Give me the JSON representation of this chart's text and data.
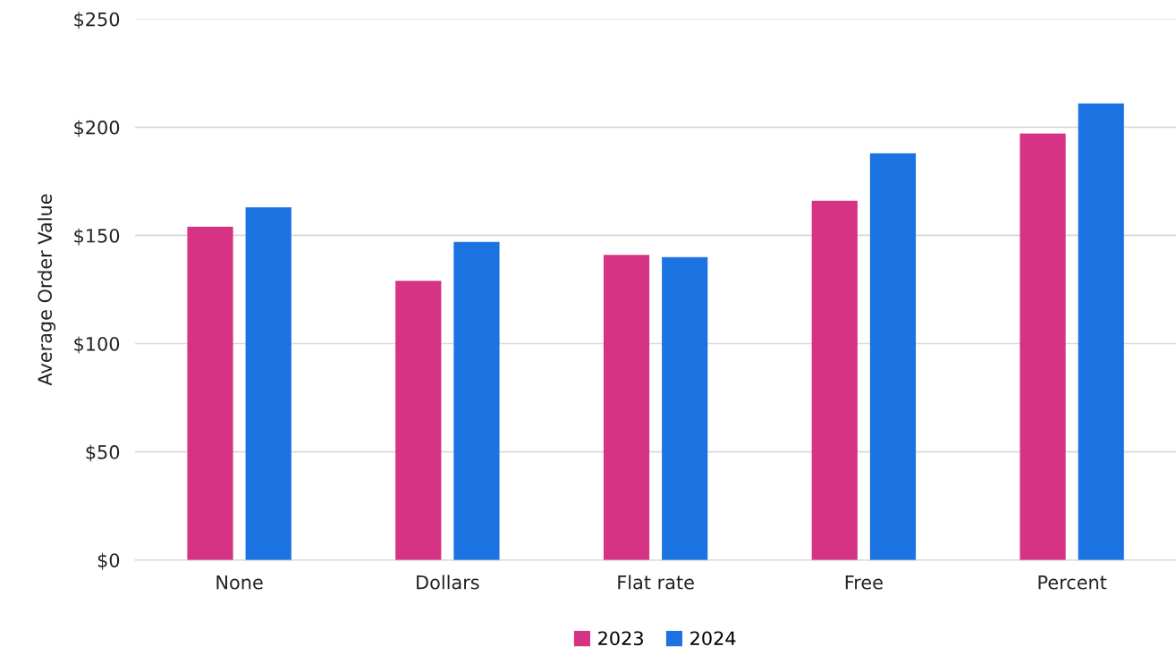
{
  "chart_data": {
    "type": "bar",
    "ylabel": "Average Order Value",
    "categories": [
      "None",
      "Dollars",
      "Flat rate",
      "Free",
      "Percent"
    ],
    "series": [
      {
        "name": "2023",
        "color": "#d63384",
        "values": [
          154,
          129,
          141,
          166,
          197
        ]
      },
      {
        "name": "2024",
        "color": "#1a73e0",
        "values": [
          163,
          147,
          140,
          188,
          211
        ]
      }
    ],
    "ylim": [
      0,
      250
    ],
    "yticks": [
      {
        "value": 0,
        "label": "$0"
      },
      {
        "value": 50,
        "label": "$50"
      },
      {
        "value": 100,
        "label": "$100"
      },
      {
        "value": 150,
        "label": "$150"
      },
      {
        "value": 200,
        "label": "$200"
      },
      {
        "value": 250,
        "label": "$250"
      }
    ],
    "grid": "y",
    "legend": "bottom"
  }
}
